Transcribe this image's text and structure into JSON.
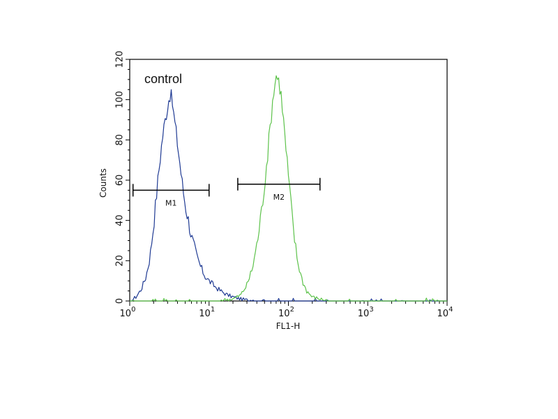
{
  "chart_data": {
    "type": "line",
    "title": "",
    "xlabel": "FL1-H",
    "ylabel": "Counts",
    "x_scale": "log",
    "xlim": [
      1,
      10000
    ],
    "ylim": [
      0,
      120
    ],
    "x_ticks": [
      {
        "value": 1,
        "base": "10",
        "exp": "0"
      },
      {
        "value": 10,
        "base": "10",
        "exp": "1"
      },
      {
        "value": 100,
        "base": "10",
        "exp": "2"
      },
      {
        "value": 1000,
        "base": "10",
        "exp": "3"
      },
      {
        "value": 10000,
        "base": "10",
        "exp": "4"
      }
    ],
    "y_ticks": [
      "0",
      "20",
      "40",
      "60",
      "80",
      "100",
      "120"
    ],
    "grid": false,
    "annotation": "control",
    "markers": [
      {
        "label": "M1",
        "x_start": 1.1,
        "x_end": 10,
        "y": 55
      },
      {
        "label": "M2",
        "x_start": 23,
        "x_end": 250,
        "y": 58
      }
    ],
    "colors": {
      "series_blue": "#1f3a93",
      "series_green": "#5cc24a",
      "axis": "#000000"
    },
    "series": [
      {
        "color": "#1f3a93",
        "x": [
          1,
          1.2,
          1.4,
          1.6,
          1.8,
          2.0,
          2.2,
          2.4,
          2.6,
          2.8,
          3.0,
          3.2,
          3.4,
          3.6,
          3.8,
          4.0,
          4.3,
          4.6,
          5.0,
          5.5,
          6.0,
          7.0,
          8.0,
          9.0,
          10,
          12,
          14,
          17,
          20,
          25,
          30,
          40,
          60,
          100,
          1000,
          10000
        ],
        "y": [
          0,
          2,
          6,
          12,
          22,
          38,
          55,
          70,
          82,
          90,
          97,
          103,
          100,
          92,
          85,
          78,
          68,
          58,
          48,
          40,
          32,
          22,
          16,
          12,
          10,
          7,
          5,
          3,
          2,
          1,
          0.5,
          0,
          0,
          0,
          0,
          0
        ]
      },
      {
        "color": "#5cc24a",
        "x": [
          1,
          10,
          20,
          25,
          30,
          35,
          40,
          45,
          50,
          55,
          60,
          65,
          70,
          75,
          80,
          85,
          90,
          100,
          110,
          120,
          130,
          150,
          170,
          200,
          250,
          300,
          500,
          1000,
          10000
        ],
        "y": [
          0,
          0,
          1,
          3,
          8,
          16,
          28,
          42,
          58,
          74,
          90,
          104,
          112,
          110,
          104,
          94,
          82,
          62,
          44,
          30,
          20,
          10,
          5,
          2,
          1,
          0.5,
          0,
          0,
          0
        ]
      }
    ]
  }
}
